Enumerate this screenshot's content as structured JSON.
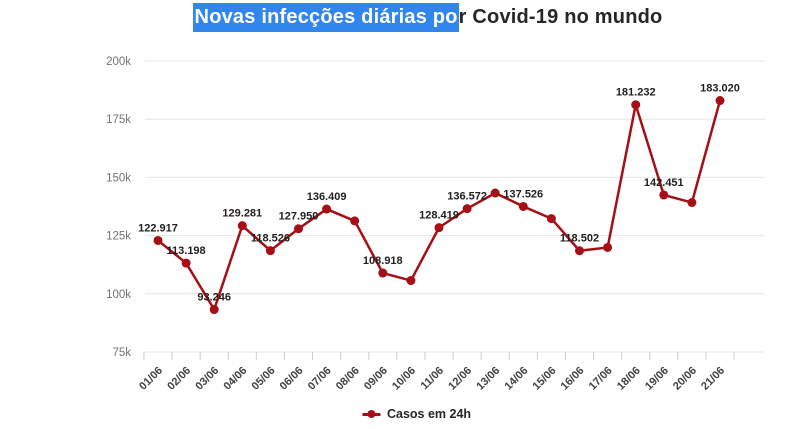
{
  "title": {
    "selected_text": "Novas infecções diárias po",
    "rest_text": "r Covid-19 no mundo",
    "selection_color": "#3186ee",
    "text_color": "#262626"
  },
  "legend": {
    "label": "Casos em 24h",
    "marker_color": "#a50f15"
  },
  "chart_data": {
    "type": "line",
    "title": "Novas infecções diárias por Covid-19 no mundo",
    "series_name": "Casos em 24h",
    "line_color": "#a50f15",
    "label_color": "#1f1f1f",
    "axis_text_color": "#737373",
    "x_text_color": "#404040",
    "grid_color": "#e6e6e6",
    "grid": true,
    "legend_position": "bottom",
    "x": [
      "01/06",
      "02/06",
      "03/06",
      "04/06",
      "05/06",
      "06/06",
      "07/06",
      "08/06",
      "09/06",
      "10/06",
      "11/06",
      "12/06",
      "13/06",
      "14/06",
      "15/06",
      "16/06",
      "17/06",
      "18/06",
      "19/06",
      "20/06",
      "21/06"
    ],
    "values": [
      122917,
      113198,
      93246,
      129281,
      118526,
      127950,
      136409,
      131300,
      108918,
      105700,
      128419,
      136572,
      143300,
      137526,
      132300,
      118502,
      119900,
      181232,
      142451,
      139200,
      183020
    ],
    "point_labels": [
      "122.917",
      "113.198",
      "93.246",
      "129.281",
      "118.526",
      "127.950",
      "136.409",
      null,
      "108.918",
      null,
      "128.419",
      "136.572",
      null,
      "137.526",
      null,
      "118.502",
      null,
      "181.232",
      "142.451",
      null,
      "183.020"
    ],
    "ylim": [
      75000,
      200000
    ],
    "yticks": [
      75000,
      100000,
      125000,
      150000,
      175000,
      200000
    ],
    "ytick_labels": [
      "75k",
      "100k",
      "125k",
      "150k",
      "175k",
      "200k"
    ]
  }
}
